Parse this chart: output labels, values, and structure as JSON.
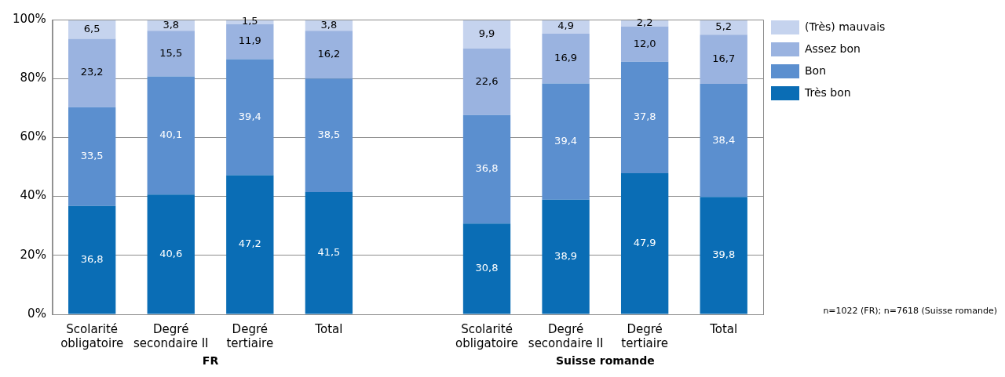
{
  "chart_data": {
    "type": "bar",
    "stacked": true,
    "categories": [
      "Scolarité obligatoire",
      "Degré secondaire II",
      "Degré tertiaire",
      "Total",
      null,
      "Scolarité obligatoire",
      "Degré secondaire II",
      "Degré tertiaire",
      "Total"
    ],
    "series": [
      {
        "name": "Très bon",
        "color": "#0a6db5",
        "values": [
          36.8,
          40.6,
          47.2,
          41.5,
          null,
          30.8,
          38.9,
          47.9,
          39.8
        ],
        "value_labels": [
          "36,8",
          "40,6",
          "47,2",
          "41,5",
          null,
          "30,8",
          "38,9",
          "47,9",
          "39,8"
        ]
      },
      {
        "name": "Bon",
        "color": "#5b8fcf",
        "values": [
          33.5,
          40.1,
          39.4,
          38.5,
          null,
          36.8,
          39.4,
          37.8,
          38.4
        ],
        "value_labels": [
          "33,5",
          "40,1",
          "39,4",
          "38,5",
          null,
          "36,8",
          "39,4",
          "37,8",
          "38,4"
        ]
      },
      {
        "name": "Assez bon",
        "color": "#9ab3e0",
        "values": [
          23.2,
          15.5,
          11.9,
          16.2,
          null,
          22.6,
          16.9,
          12.0,
          16.7
        ],
        "value_labels": [
          "23,2",
          "15,5",
          "11,9",
          "16,2",
          null,
          "22,6",
          "16,9",
          "12,0",
          "16,7"
        ]
      },
      {
        "name": "(Très) mauvais",
        "color": "#c5d3ee",
        "values": [
          6.5,
          3.8,
          1.5,
          3.8,
          null,
          9.9,
          4.9,
          2.2,
          5.2
        ],
        "value_labels": [
          "6,5",
          "3,8",
          "1,5",
          "3,8",
          null,
          "9,9",
          "4,9",
          "2,2",
          "5,2"
        ]
      }
    ],
    "ylim": [
      0,
      100
    ],
    "yticks": [
      {
        "value": 0,
        "label": "0%"
      },
      {
        "value": 20,
        "label": "20%"
      },
      {
        "value": 40,
        "label": "40%"
      },
      {
        "value": 60,
        "label": "60%"
      },
      {
        "value": 80,
        "label": "80%"
      },
      {
        "value": 100,
        "label": "100%"
      }
    ],
    "grid": "y",
    "legend": "top right",
    "annotations": [
      "FR",
      "Suisse romande",
      "n=1022 (FR); n=7618 (Suisse romande)"
    ]
  }
}
